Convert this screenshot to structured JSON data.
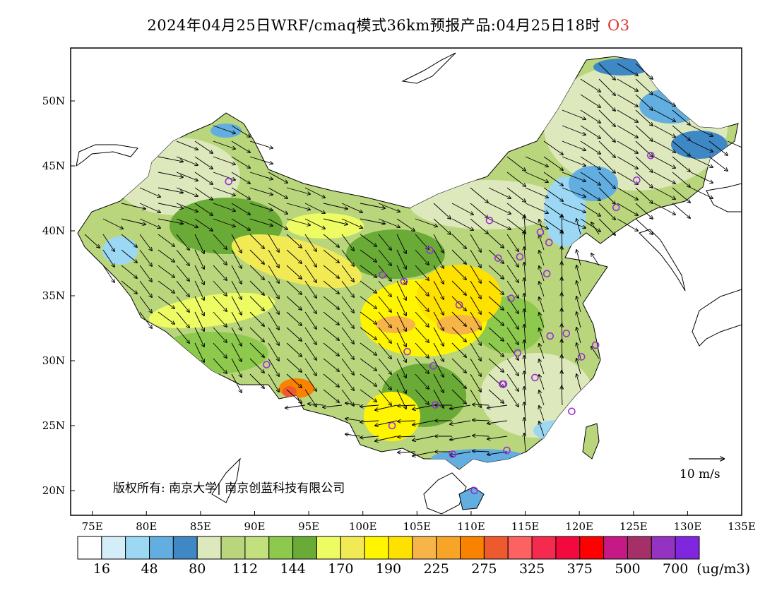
{
  "title": {
    "main": "2024年04月25日WRF/cmaq模式36km预报产品:04月25日18时",
    "species": "O3",
    "species_color": "#e0302a"
  },
  "copyright": "版权所有: 南京大学| 南京创蓝科技有限公司",
  "wind_legend": "10 m/s",
  "lat_labels": [
    "20N",
    "25N",
    "30N",
    "35N",
    "40N",
    "45N",
    "50N"
  ],
  "lon_labels": [
    "75E",
    "80E",
    "85E",
    "90E",
    "95E",
    "100E",
    "105E",
    "110E",
    "115E",
    "120E",
    "125E",
    "130E",
    "135E"
  ],
  "colorbar": {
    "colors": [
      "#ffffff",
      "#d3eef8",
      "#9cd8f4",
      "#62aee0",
      "#3f88c6",
      "#dde8bc",
      "#b9d67c",
      "#c3e07f",
      "#8cc94c",
      "#6aaa37",
      "#eefc63",
      "#f2ea55",
      "#fff500",
      "#ffe100",
      "#f7b447",
      "#f7a527",
      "#f98300",
      "#ec5a2e",
      "#fd6262",
      "#f42b4f",
      "#f20a3f",
      "#fe0000",
      "#c71986",
      "#a53068",
      "#9432c2",
      "#8026de"
    ],
    "labels": [
      "16",
      "48",
      "80",
      "112",
      "144",
      "170",
      "190",
      "225",
      "275",
      "325",
      "375",
      "500",
      "700"
    ],
    "unit": "(ug/m3)"
  },
  "stations": [
    [
      87.6,
      43.8
    ],
    [
      91.1,
      29.7
    ],
    [
      101.8,
      36.6
    ],
    [
      103.8,
      36.1
    ],
    [
      106.2,
      38.5
    ],
    [
      104.1,
      30.7
    ],
    [
      106.5,
      29.6
    ],
    [
      106.7,
      26.6
    ],
    [
      102.7,
      25.0
    ],
    [
      108.3,
      22.8
    ],
    [
      110.3,
      20.0
    ],
    [
      113.3,
      23.1
    ],
    [
      113.0,
      28.2
    ],
    [
      112.9,
      28.2
    ],
    [
      114.3,
      30.6
    ],
    [
      115.9,
      28.7
    ],
    [
      108.9,
      34.3
    ],
    [
      113.7,
      34.8
    ],
    [
      112.5,
      37.9
    ],
    [
      114.5,
      38.0
    ],
    [
      111.7,
      40.8
    ],
    [
      116.4,
      39.9
    ],
    [
      117.2,
      39.1
    ],
    [
      117.0,
      36.7
    ],
    [
      117.3,
      31.9
    ],
    [
      118.8,
      32.1
    ],
    [
      120.2,
      30.3
    ],
    [
      121.5,
      31.2
    ],
    [
      119.3,
      26.1
    ],
    [
      123.4,
      41.8
    ],
    [
      125.3,
      43.9
    ],
    [
      126.6,
      45.8
    ]
  ]
}
